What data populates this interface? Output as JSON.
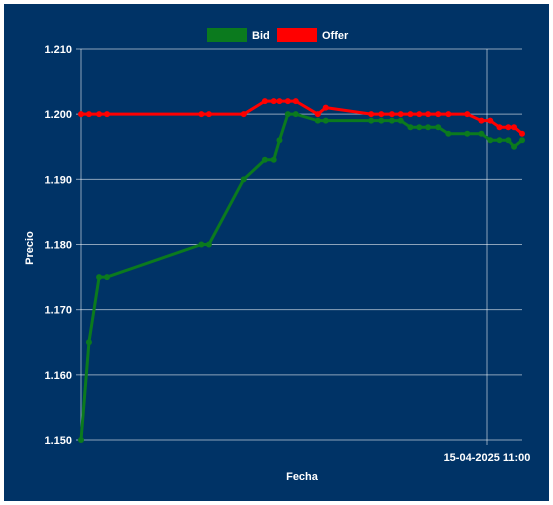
{
  "chart_data": {
    "type": "line",
    "xlabel": "Fecha",
    "ylabel": "Precio",
    "ylim": [
      1.15,
      1.21
    ],
    "yticks": [
      "1.150",
      "1.160",
      "1.170",
      "1.180",
      "1.190",
      "1.200",
      "1.210"
    ],
    "xtick_label": "15-04-2025 11:00",
    "grid": true,
    "legend_position": "top-center",
    "series": [
      {
        "name": "Bid",
        "color": "#0b7a1e",
        "points": [
          [
            0.0,
            1.15
          ],
          [
            0.018,
            1.165
          ],
          [
            0.041,
            1.175
          ],
          [
            0.059,
            1.175
          ],
          [
            0.273,
            1.18
          ],
          [
            0.29,
            1.18
          ],
          [
            0.369,
            1.19
          ],
          [
            0.417,
            1.193
          ],
          [
            0.437,
            1.193
          ],
          [
            0.45,
            1.196
          ],
          [
            0.469,
            1.2
          ],
          [
            0.487,
            1.2
          ],
          [
            0.537,
            1.199
          ],
          [
            0.555,
            1.199
          ],
          [
            0.658,
            1.199
          ],
          [
            0.681,
            1.199
          ],
          [
            0.705,
            1.199
          ],
          [
            0.725,
            1.199
          ],
          [
            0.747,
            1.198
          ],
          [
            0.767,
            1.198
          ],
          [
            0.787,
            1.198
          ],
          [
            0.81,
            1.198
          ],
          [
            0.833,
            1.197
          ],
          [
            0.876,
            1.197
          ],
          [
            0.908,
            1.197
          ],
          [
            0.928,
            1.196
          ],
          [
            0.949,
            1.196
          ],
          [
            0.969,
            1.196
          ],
          [
            0.982,
            1.195
          ],
          [
            1.0,
            1.196
          ]
        ]
      },
      {
        "name": "Offer",
        "color": "#ff0000",
        "points": [
          [
            0.0,
            1.2
          ],
          [
            0.018,
            1.2
          ],
          [
            0.041,
            1.2
          ],
          [
            0.059,
            1.2
          ],
          [
            0.273,
            1.2
          ],
          [
            0.29,
            1.2
          ],
          [
            0.369,
            1.2
          ],
          [
            0.417,
            1.202
          ],
          [
            0.437,
            1.202
          ],
          [
            0.45,
            1.202
          ],
          [
            0.469,
            1.202
          ],
          [
            0.487,
            1.202
          ],
          [
            0.537,
            1.2
          ],
          [
            0.555,
            1.201
          ],
          [
            0.658,
            1.2
          ],
          [
            0.681,
            1.2
          ],
          [
            0.705,
            1.2
          ],
          [
            0.725,
            1.2
          ],
          [
            0.747,
            1.2
          ],
          [
            0.767,
            1.2
          ],
          [
            0.787,
            1.2
          ],
          [
            0.81,
            1.2
          ],
          [
            0.833,
            1.2
          ],
          [
            0.876,
            1.2
          ],
          [
            0.908,
            1.199
          ],
          [
            0.928,
            1.199
          ],
          [
            0.949,
            1.198
          ],
          [
            0.969,
            1.198
          ],
          [
            0.982,
            1.198
          ],
          [
            1.0,
            1.197
          ]
        ]
      }
    ]
  }
}
